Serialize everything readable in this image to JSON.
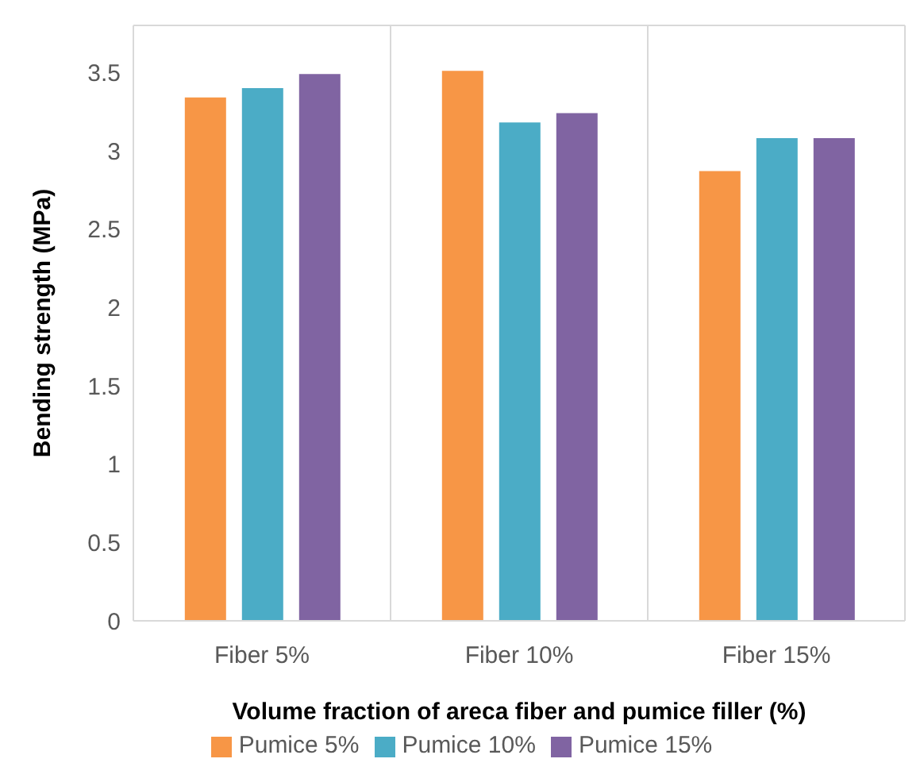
{
  "chart_data": {
    "type": "bar",
    "xlabel": "Volume fraction of areca fiber and pumice filler (%)",
    "ylabel": "Bending strength (MPa)",
    "categories": [
      "Fiber 5%",
      "Fiber 10%",
      "Fiber 15%"
    ],
    "series": [
      {
        "name": "Pumice 5%",
        "color": "#f79646",
        "values": [
          3.34,
          3.51,
          2.87
        ]
      },
      {
        "name": "Pumice 10%",
        "color": "#4bacc6",
        "values": [
          3.4,
          3.18,
          3.08
        ]
      },
      {
        "name": "Pumice 15%",
        "color": "#8064a2",
        "values": [
          3.49,
          3.24,
          3.08
        ]
      }
    ],
    "ylim": [
      0,
      3.8
    ],
    "yticks": [
      0,
      0.5,
      1,
      1.5,
      2,
      2.5,
      3,
      3.5
    ],
    "grid": true,
    "legend": "bottom"
  }
}
